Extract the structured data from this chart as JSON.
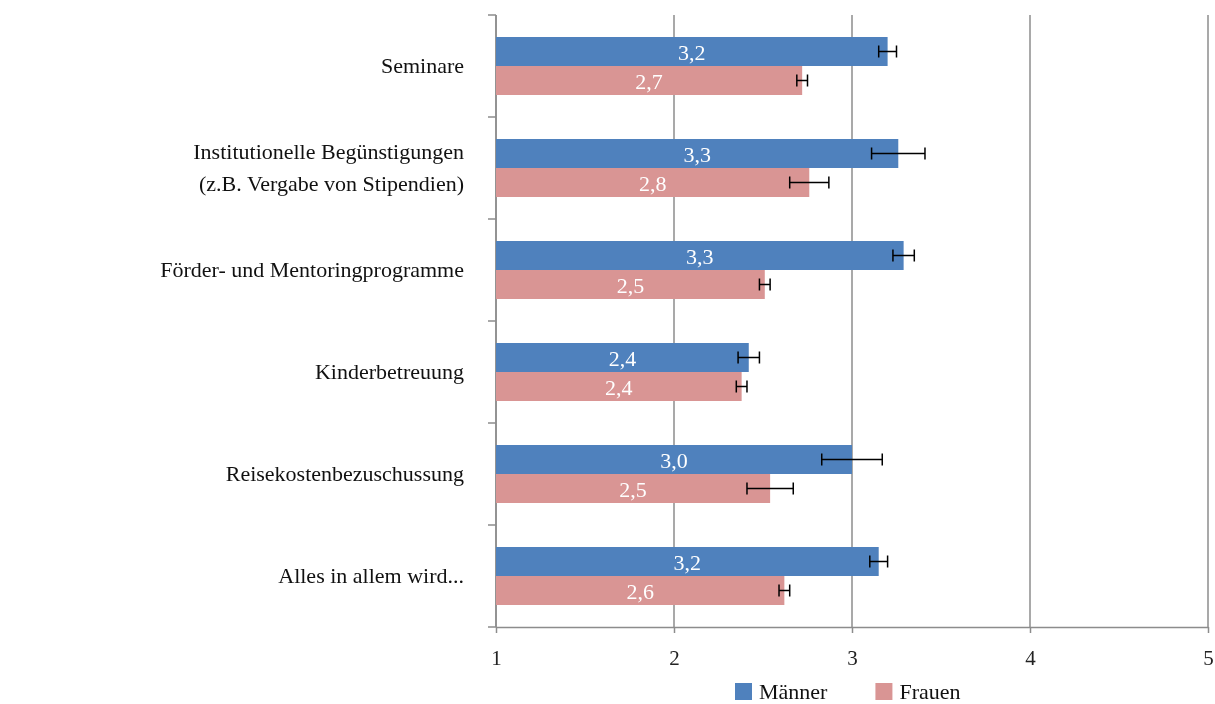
{
  "chart_data": {
    "type": "bar",
    "orientation": "horizontal",
    "categories": [
      "Seminare",
      "Institutionelle Begünstigungen\n(z.B. Vergabe von Stipendien)",
      "Förder- und Mentoringprogramme",
      "Kinderbetreuung",
      "Reisekostenbezuschussung",
      "Alles in allem wird..."
    ],
    "series": [
      {
        "name": "Männer",
        "color": "#4f81bd",
        "values": [
          3.2,
          3.26,
          3.29,
          2.42,
          3.0,
          3.15
        ],
        "errors": [
          0.05,
          0.15,
          0.06,
          0.06,
          0.17,
          0.05
        ],
        "value_labels": [
          "3,2",
          "3,3",
          "3,3",
          "2,4",
          "3,0",
          "3,2"
        ]
      },
      {
        "name": "Frauen",
        "color": "#d99594",
        "values": [
          2.72,
          2.76,
          2.51,
          2.38,
          2.54,
          2.62
        ],
        "errors": [
          0.03,
          0.11,
          0.03,
          0.03,
          0.13,
          0.03
        ],
        "value_labels": [
          "2,7",
          "2,8",
          "2,5",
          "2,4",
          "2,5",
          "2,6"
        ]
      }
    ],
    "xlim": [
      1,
      5
    ],
    "xticks": [
      1,
      2,
      3,
      4,
      5
    ],
    "grid": "x",
    "legend": "bottom"
  }
}
